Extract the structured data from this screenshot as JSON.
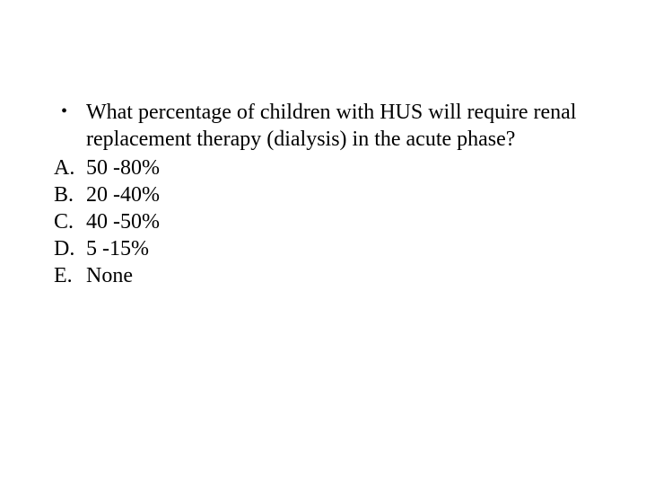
{
  "slide": {
    "bullet_glyph": "•",
    "question": "What percentage of children with HUS will require renal replacement therapy (dialysis) in the acute phase?",
    "options": [
      {
        "label": "A.",
        "text": "50 -80%"
      },
      {
        "label": "B.",
        "text": " 20 -40%"
      },
      {
        "label": "C.",
        "text": " 40 -50%"
      },
      {
        "label": "D.",
        "text": " 5 -15%"
      },
      {
        "label": "E.",
        "text": " None"
      }
    ],
    "colors": {
      "background": "#ffffff",
      "text": "#000000"
    },
    "font": {
      "family": "Times New Roman",
      "size_pt": 24
    }
  }
}
